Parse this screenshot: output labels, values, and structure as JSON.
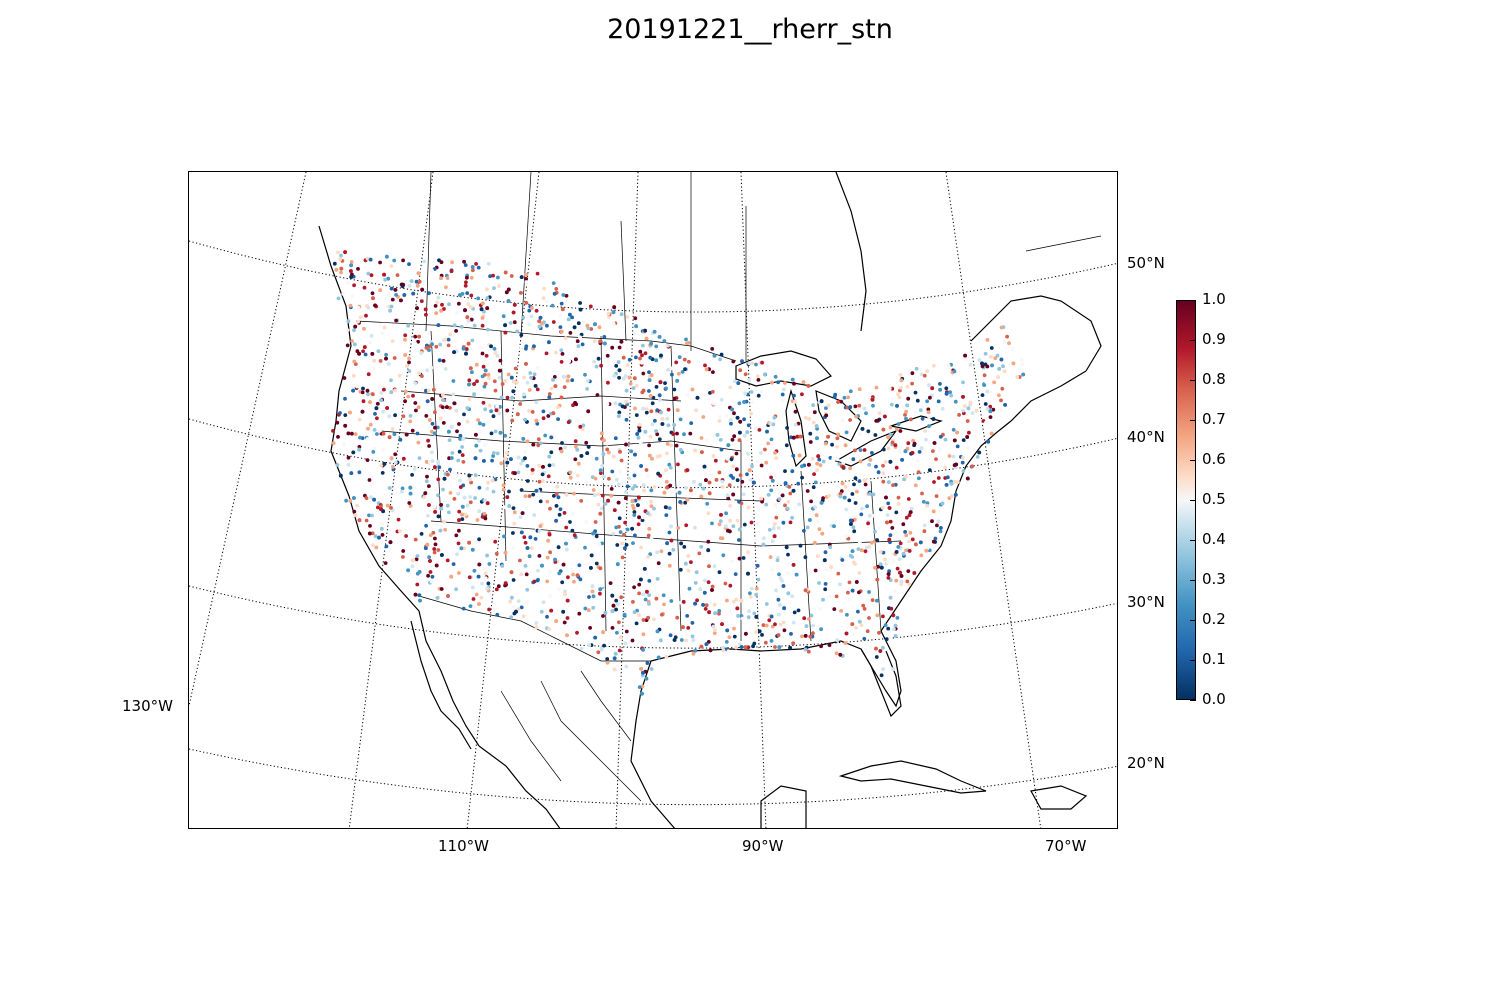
{
  "title": "20191221__rherr_stn",
  "map": {
    "projection": "lambert-conformal",
    "meridian_labels": [
      "130°W",
      "110°W",
      "90°W",
      "70°W"
    ],
    "parallel_labels": [
      "50°N",
      "40°N",
      "30°N",
      "20°N"
    ],
    "graticule_style": "dotted",
    "background": "#ffffff",
    "coastline_color": "#000000",
    "marker": "small filled circles, station points"
  },
  "colorbar": {
    "colormap": "RdBu_r",
    "vmin": 0.0,
    "vmax": 1.0,
    "ticks": [
      "0.0",
      "0.1",
      "0.2",
      "0.3",
      "0.4",
      "0.5",
      "0.6",
      "0.7",
      "0.8",
      "0.9",
      "1.0"
    ],
    "colors": [
      "#053061",
      "#2166ac",
      "#4393c3",
      "#92c5de",
      "#d1e5f0",
      "#f7f7f7",
      "#fddbc7",
      "#f4a582",
      "#d6604d",
      "#b2182b",
      "#67001f"
    ]
  }
}
